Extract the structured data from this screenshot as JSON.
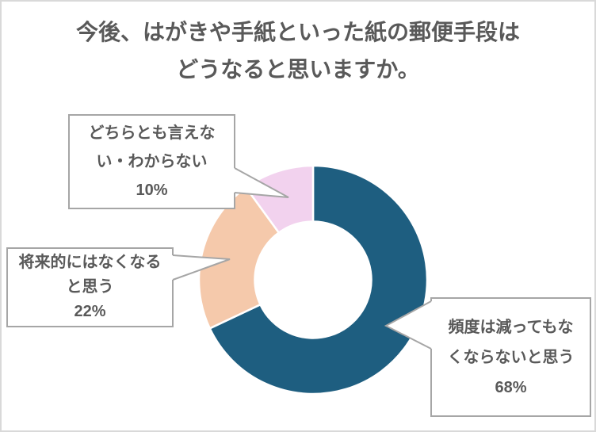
{
  "colors": {
    "background": "#ffffff",
    "frame_border": "#d9d9d9",
    "text": "#595959",
    "callout_border": "#a6a6a6"
  },
  "title": {
    "lines": [
      "今後、はがきや手紙といった紙の郵便手段は",
      "どうなると思いますか。"
    ]
  },
  "chart_data": {
    "type": "pie",
    "subtype": "donut",
    "title": "今後、はがきや手紙といった紙の郵便手段はどうなると思いますか。",
    "start_angle_deg": 0,
    "direction": "clockwise",
    "inner_radius_ratio": 0.51,
    "legend_position": "none",
    "labels_style": "callout-boxes",
    "slices": [
      {
        "label": "頻度は減ってもなくならないと思う",
        "lines": [
          "頻度は減ってもな",
          "くならないと思う"
        ],
        "value": 68,
        "pct": "68%",
        "color": "#1e5e80"
      },
      {
        "label": "将来的にはなくなると思う",
        "lines": [
          "将来的にはなくなる",
          "と思う"
        ],
        "value": 22,
        "pct": "22%",
        "color": "#f5c9ab"
      },
      {
        "label": "どちらとも言えない・わからない",
        "lines": [
          "どちらとも言えな",
          "い・わからない"
        ],
        "value": 10,
        "pct": "10%",
        "color": "#f2d2ee"
      }
    ]
  }
}
